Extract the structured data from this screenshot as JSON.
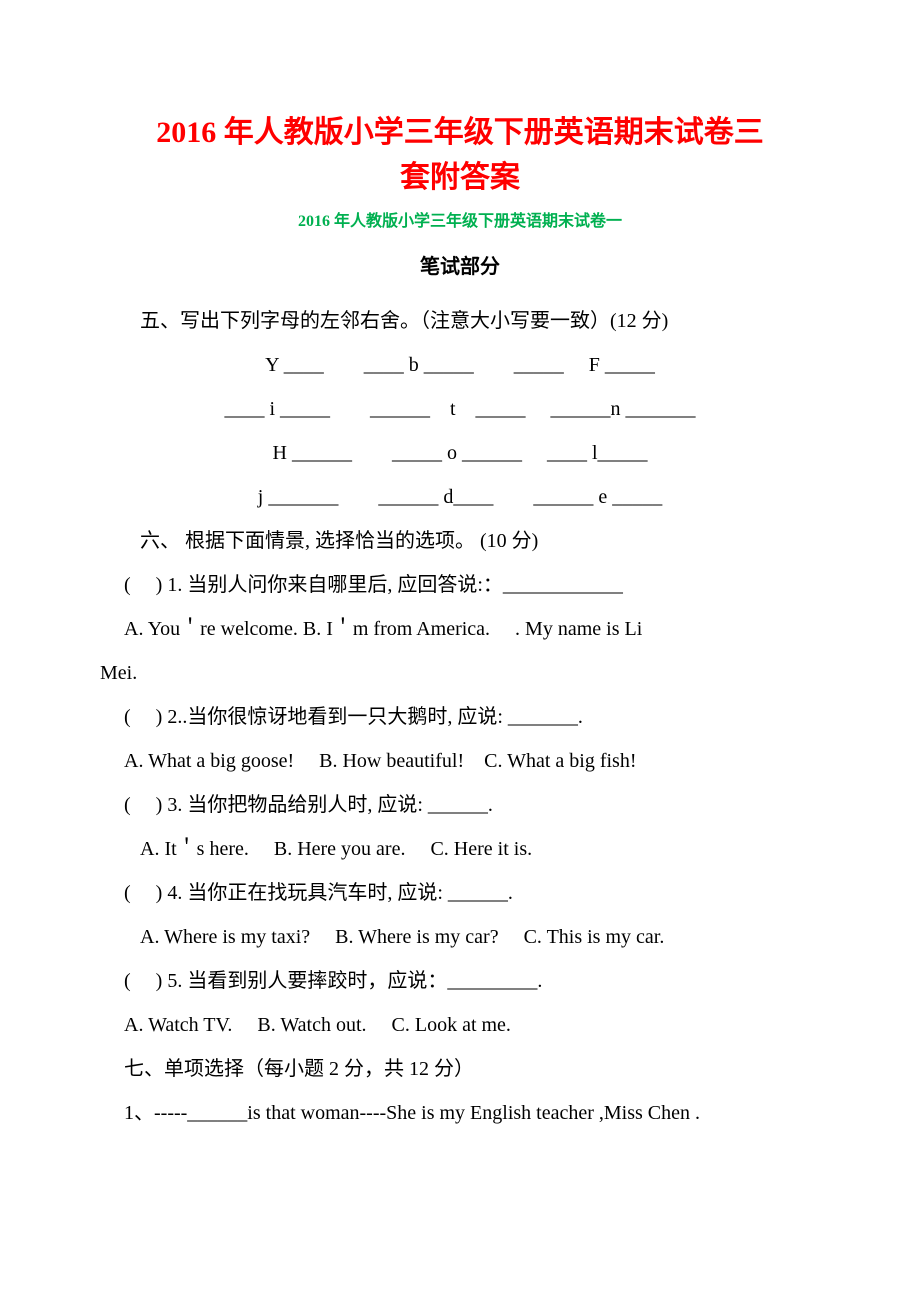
{
  "colors": {
    "title": "#ff0000",
    "subtitle": "#00b050",
    "body": "#000000",
    "background": "#ffffff"
  },
  "typography": {
    "title_fontsize": 30,
    "subtitle_fontsize": 16,
    "body_fontsize": 20,
    "line_height": 2.2,
    "font_family": "SimSun, Times New Roman, serif"
  },
  "title_line1": "2016 年人教版小学三年级下册英语期末试卷三",
  "title_line2": "套附答案",
  "subtitle": "2016 年人教版小学三年级下册英语期末试卷一",
  "section_written": "笔试部分",
  "section5_heading": "五、写出下列字母的左邻右舍。（注意大小写要一致）(12 分)",
  "letters_row1": "Y   ____  ____   b  _____  _____   F  _____",
  "letters_row2": "____  i  _____  ______ t _____  ______n  _______",
  "letters_row3": "H  ______  _____   o  ______   ____  l_____",
  "letters_row4": "j  _______  ______   d____  ______    e  _____",
  "section6_heading": "六、  根据下面情景,  选择恰当的选项。  (10 分)",
  "q6_1_prompt": "(  ) 1.  当别人问你来自哪里后,  应回答说:：____________",
  "q6_1_opts": "A. You＇re welcome. B. I＇m from America.  . My name is Li",
  "q6_1_opts_cont": "Mei.",
  "q6_2_prompt": "(  ) 2..当你很惊讶地看到一只大鹅时,  应说: _______.",
  "q6_2_opts": "A. What a big goose!  B. How beautiful! C. What a big fish!",
  "q6_3_prompt": "(  ) 3.  当你把物品给别人时,  应说: ______.",
  "q6_3_opts": "A. It＇s here.  B. Here you are.  C. Here it is.",
  "q6_4_prompt": "(  ) 4.  当你正在找玩具汽车时,  应说: ______.",
  "q6_4_opts": "A. Where is my taxi?   B. Where is my car?  C. This is my car.",
  "q6_5_prompt": "(  ) 5.  当看到别人要摔跤时，应说：_________.",
  "q6_5_opts": "A. Watch TV.  B. Watch out.  C. Look at me.",
  "section7_heading": "七、单项选择（每小题 2 分，共 12  分）",
  "q7_1": "1、-----______is that woman----She is my English teacher ,Miss Chen ."
}
